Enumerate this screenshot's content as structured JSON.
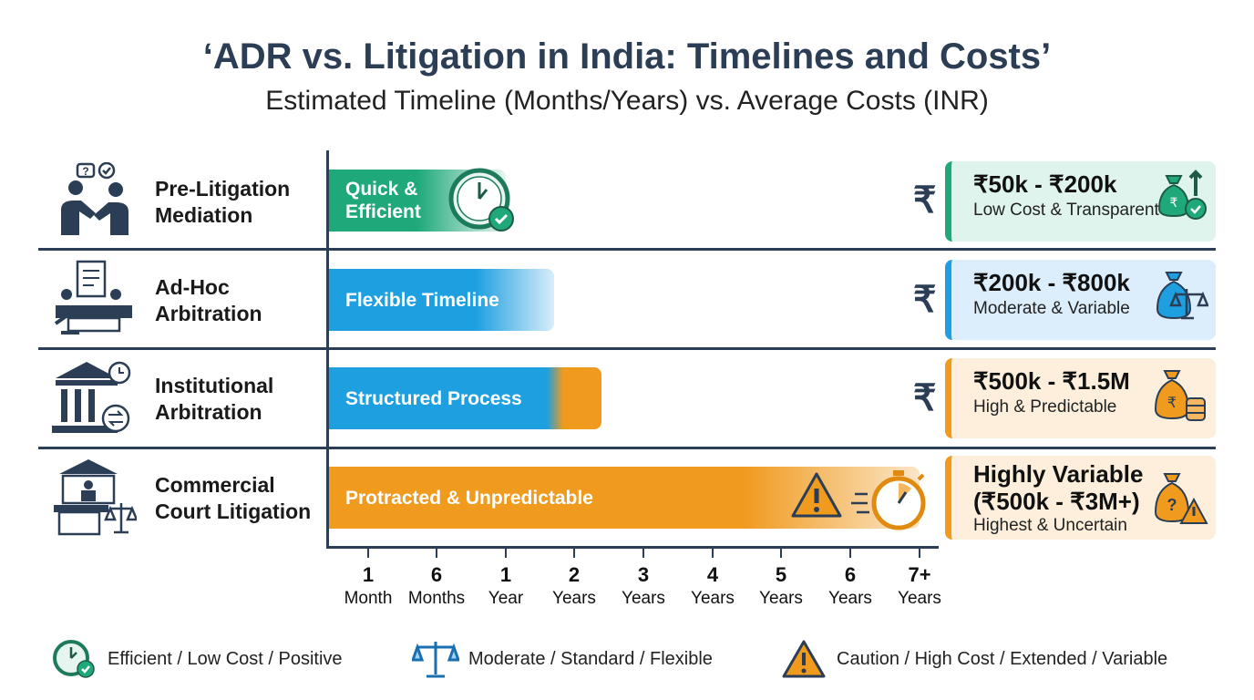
{
  "title": "‘ADR vs. Litigation in India: Timelines and Costs’",
  "subtitle": "Estimated Timeline (Months/Years) vs. Average Costs (INR)",
  "chart_data": {
    "type": "bar",
    "orientation": "horizontal",
    "x_ticks": [
      {
        "num": "1",
        "unit": "Month",
        "years": 0.0833
      },
      {
        "num": "6",
        "unit": "Months",
        "years": 0.5
      },
      {
        "num": "1",
        "unit": "Year",
        "years": 1
      },
      {
        "num": "2",
        "unit": "Years",
        "years": 2
      },
      {
        "num": "3",
        "unit": "Years",
        "years": 3
      },
      {
        "num": "4",
        "unit": "Years",
        "years": 4
      },
      {
        "num": "5",
        "unit": "Years",
        "years": 5
      },
      {
        "num": "6",
        "unit": "Years",
        "years": 6
      },
      {
        "num": "7+",
        "unit": "Years",
        "years": 7
      }
    ],
    "categories": [
      {
        "line1": "Pre-Litigation",
        "line2": "Mediation",
        "bar_label_1": "Quick &",
        "bar_label_2": "Efficient",
        "duration_years": 1,
        "color": "#1fa97a",
        "cost": "₹50k - ₹200k",
        "cost_line2": "",
        "cost_desc": "Low Cost & Transparent",
        "cost_bg": "#dff4ec",
        "rating": "efficient"
      },
      {
        "line1": "Ad-Hoc",
        "line2": "Arbitration",
        "bar_label_1": "Flexible Timeline",
        "bar_label_2": "",
        "duration_years": 1.7,
        "color": "#1e9fe0",
        "cost": "₹200k - ₹800k",
        "cost_line2": "",
        "cost_desc": "Moderate & Variable",
        "cost_bg": "#dceefb",
        "rating": "moderate"
      },
      {
        "line1": "Institutional",
        "line2": "Arbitration",
        "bar_label_1": "Structured Process",
        "bar_label_2": "",
        "duration_years": 2.4,
        "color": "#1e9fe0",
        "color2": "#f09a1e",
        "cost": "₹500k - ₹1.5M",
        "cost_line2": "",
        "cost_desc": "High & Predictable",
        "cost_bg": "#fdefdc",
        "rating": "caution"
      },
      {
        "line1": "Commercial",
        "line2": "Court Litigation",
        "bar_label_1": "Protracted & Unpredictable",
        "bar_label_2": "",
        "duration_years": 7,
        "color": "#f09a1e",
        "cost": "Highly Variable",
        "cost_line2": "(₹500k - ₹3M+)",
        "cost_desc": "Highest & Uncertain",
        "cost_bg": "#fdefdc",
        "rating": "caution"
      }
    ],
    "cost_symbol": "₹",
    "grid": false
  },
  "legend": [
    {
      "icon": "clock-check-icon",
      "label": "Efficient / Low Cost / Positive",
      "color": "#1fa97a"
    },
    {
      "icon": "scales-icon",
      "label": "Moderate / Standard / Flexible",
      "color": "#1e9fe0"
    },
    {
      "icon": "warning-icon",
      "label": "Caution / High Cost / Extended / Variable",
      "color": "#f09a1e"
    }
  ]
}
